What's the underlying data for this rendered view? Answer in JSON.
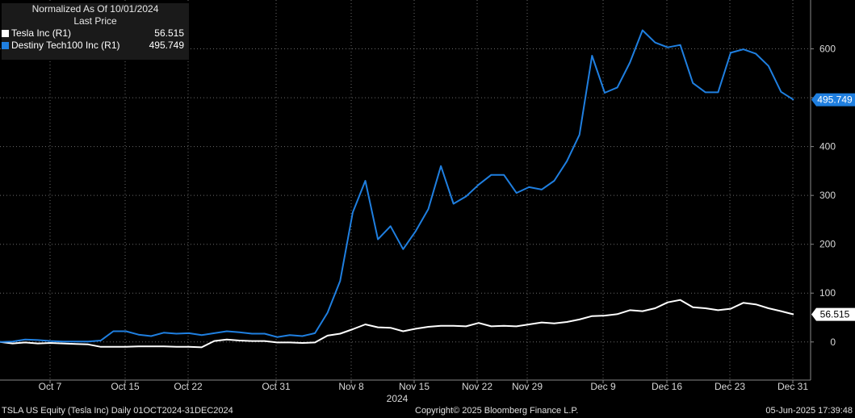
{
  "legend": {
    "title": "Normalized As Of 10/01/2024",
    "subtitle": "Last Price"
  },
  "footer": {
    "left": "TSLA US Equity (Tesla Inc)  Daily 01OCT2024-31DEC2024",
    "center": "Copyright© 2025 Bloomberg Finance L.P.",
    "right": "05-Jun-2025 17:39:48"
  },
  "chart_data": {
    "type": "line",
    "x_label": "2024",
    "x_ticks": [
      "Oct 7",
      "Oct 15",
      "Oct 22",
      "Oct 31",
      "Nov 8",
      "Nov 15",
      "Nov 22",
      "Nov 29",
      "Dec 9",
      "Dec 16",
      "Dec 23",
      "Dec 31"
    ],
    "y_ticks": [
      0,
      100,
      200,
      300,
      400,
      500,
      600
    ],
    "y_tick_labels": [
      "0",
      "100",
      "200",
      "300",
      "400",
      "",
      "600"
    ],
    "ylim": [
      -78,
      700
    ],
    "grid": true,
    "legend_position": "top-left",
    "series": [
      {
        "name": "Tesla Inc  (R1)",
        "value_label": "56.515",
        "color": "#ffffff",
        "values": [
          0,
          -3,
          -1,
          -3,
          -2,
          -3,
          -4,
          -5,
          -10,
          -10,
          -10,
          -9,
          -9,
          -9,
          -10,
          -10,
          -11,
          2,
          5,
          3,
          2,
          2,
          -1,
          -1,
          -2,
          -1,
          13,
          17,
          26,
          36,
          30,
          29,
          22,
          27,
          31,
          33,
          33,
          32,
          39,
          32,
          33,
          32,
          36,
          40,
          38,
          41,
          46,
          53,
          54,
          57,
          65,
          63,
          69,
          81,
          86,
          71,
          69,
          65,
          68,
          80,
          77,
          69,
          63,
          56.5
        ]
      },
      {
        "name": "Destiny Tech100 Inc  (R1)",
        "value_label": "495.749",
        "color": "#1f7fe0",
        "values": [
          0,
          1,
          5,
          4,
          2,
          1,
          1,
          1,
          3,
          22,
          22,
          15,
          12,
          19,
          17,
          18,
          14,
          18,
          22,
          20,
          17,
          17,
          10,
          14,
          12,
          18,
          60,
          125,
          265,
          330,
          210,
          237,
          190,
          227,
          272,
          360,
          283,
          298,
          322,
          342,
          342,
          305,
          317,
          312,
          330,
          370,
          424,
          586,
          510,
          521,
          572,
          638,
          613,
          603,
          608,
          530,
          511,
          511,
          592,
          599,
          590,
          565,
          512,
          495.749
        ]
      }
    ]
  }
}
